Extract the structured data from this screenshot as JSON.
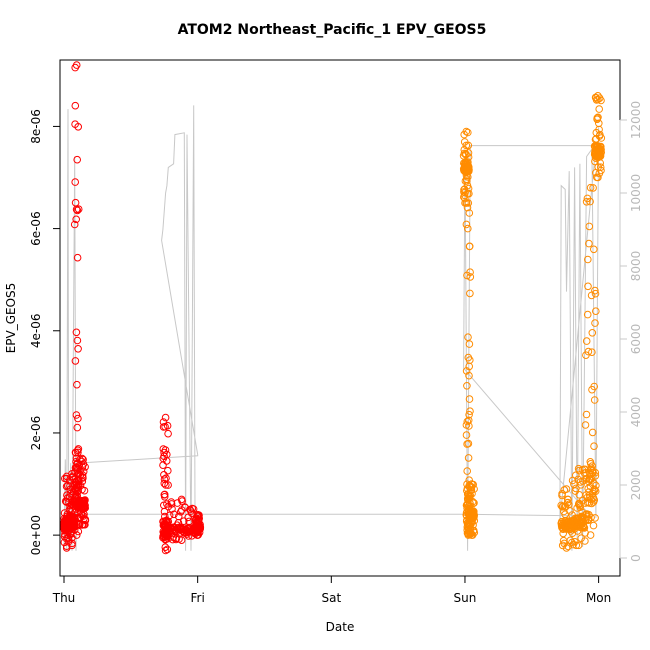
{
  "chart_data": {
    "type": "scatter",
    "title": "ATOM2 Northeast_Pacific_1 EPV_GEOS5",
    "xlabel": "Date",
    "ylabel": "EPV_GEOS5",
    "x_ticks": [
      "Thu",
      "Fri",
      "Sat",
      "Sun",
      "Mon"
    ],
    "xlim_days": [
      -0.03,
      4.16
    ],
    "ylim": [
      -8e-07,
      9.3e-06
    ],
    "y_ticks": [
      "0e+00",
      "2e-06",
      "4e-06",
      "6e-06",
      "8e-06"
    ],
    "y_tick_values": [
      0,
      2e-06,
      4e-06,
      6e-06,
      8e-06
    ],
    "y2lim": [
      0,
      12500
    ],
    "y2_ticks": [
      "0",
      "2000",
      "4000",
      "6000",
      "8000",
      "10000",
      "12000"
    ],
    "y2_tick_values": [
      0,
      2000,
      4000,
      6000,
      8000,
      10000,
      12000
    ],
    "grid": false,
    "colors": {
      "red": "#ff0000",
      "orange": "#ff8c00",
      "altitude": "#c8c8c8"
    },
    "series": [
      {
        "color": "red",
        "segments": [
          {
            "t0": 0.0,
            "t1": 0.04,
            "base": 1.8e-07,
            "min": -2.5e-07,
            "max": 1.15e-06
          },
          {
            "t0": 0.04,
            "t1": 0.08,
            "base": 2.5e-07,
            "min": -2e-07,
            "max": 1.2e-06
          },
          {
            "t0": 0.08,
            "t1": 0.11,
            "base": 1e-06,
            "min": 0.0,
            "max": 9.2e-06
          },
          {
            "t0": 0.11,
            "t1": 0.16,
            "base": 6e-07,
            "min": 2e-07,
            "max": 1.5e-06
          },
          {
            "t0": 0.74,
            "t1": 0.78,
            "base": 1e-07,
            "min": -3e-07,
            "max": 2.3e-06
          },
          {
            "t0": 0.78,
            "t1": 0.98,
            "base": 1e-07,
            "min": -1e-07,
            "max": 7e-07
          },
          {
            "t0": 0.98,
            "t1": 1.02,
            "base": 1.5e-07,
            "min": 0.0,
            "max": 4e-07
          }
        ]
      },
      {
        "color": "orange",
        "segments": [
          {
            "t0": 2.99,
            "t1": 3.03,
            "base": 7.2e-06,
            "min": 6.5e-06,
            "max": 7.9e-06
          },
          {
            "t0": 3.01,
            "t1": 3.04,
            "base": 5e-07,
            "min": 0.0,
            "max": 6.5e-06
          },
          {
            "t0": 3.03,
            "t1": 3.07,
            "base": 4e-07,
            "min": 0.0,
            "max": 1e-06
          },
          {
            "t0": 3.72,
            "t1": 3.8,
            "base": 2e-07,
            "min": -2.5e-07,
            "max": 9e-07
          },
          {
            "t0": 3.8,
            "t1": 3.9,
            "base": 2.5e-07,
            "min": -2e-07,
            "max": 1.3e-06
          },
          {
            "t0": 3.9,
            "t1": 3.98,
            "base": 8e-07,
            "min": 0.0,
            "max": 6.8e-06
          },
          {
            "t0": 3.97,
            "t1": 4.02,
            "base": 7.5e-06,
            "min": 7e-06,
            "max": 8.6e-06
          }
        ]
      }
    ],
    "altitude": [
      [
        0.0,
        220
      ],
      [
        0.01,
        2700
      ],
      [
        0.02,
        200
      ],
      [
        0.03,
        12300
      ],
      [
        0.035,
        200
      ],
      [
        0.05,
        2600
      ],
      [
        0.06,
        200
      ],
      [
        0.08,
        11000
      ],
      [
        0.09,
        200
      ],
      [
        0.1,
        2600
      ],
      [
        1.0,
        2800
      ],
      [
        1.0,
        2830
      ],
      [
        0.73,
        8700
      ],
      [
        0.74,
        9000
      ],
      [
        0.76,
        10000
      ],
      [
        0.77,
        10200
      ],
      [
        0.78,
        10700
      ],
      [
        0.82,
        10800
      ],
      [
        0.83,
        11600
      ],
      [
        0.9,
        11650
      ],
      [
        0.91,
        200
      ],
      [
        0.92,
        11600
      ],
      [
        0.95,
        200
      ],
      [
        0.97,
        12400
      ],
      [
        0.98,
        1200
      ],
      [
        0.0,
        1200
      ],
      [
        3.0,
        1200
      ],
      [
        3.94,
        1150
      ],
      [
        2.99,
        5200
      ],
      [
        3.0,
        11000
      ],
      [
        3.02,
        200
      ],
      [
        3.03,
        6300
      ],
      [
        3.04,
        11300
      ],
      [
        3.98,
        11300
      ],
      [
        3.71,
        1000
      ],
      [
        3.72,
        10200
      ],
      [
        3.75,
        10100
      ],
      [
        3.76,
        7300
      ],
      [
        3.78,
        10600
      ],
      [
        3.8,
        200
      ],
      [
        3.82,
        10700
      ],
      [
        3.84,
        500
      ],
      [
        3.86,
        10800
      ],
      [
        3.88,
        300
      ],
      [
        3.91,
        11000
      ],
      [
        3.95,
        11200
      ],
      [
        3.98,
        1100
      ],
      [
        4.0,
        11800
      ]
    ]
  }
}
